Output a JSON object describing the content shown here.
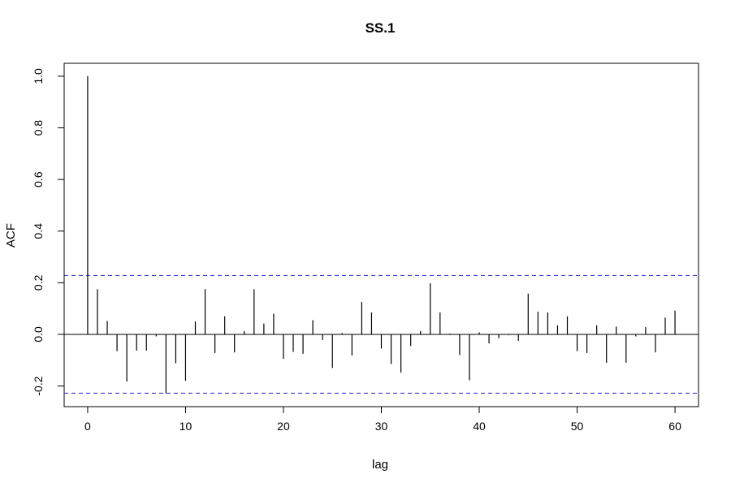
{
  "chart_data": {
    "type": "bar",
    "title": "SS.1",
    "xlabel": "lag",
    "ylabel": "ACF",
    "xlim": [
      -2.4,
      62.4
    ],
    "ylim": [
      -0.28,
      1.05
    ],
    "x_ticks": [
      0,
      10,
      20,
      30,
      40,
      50,
      60
    ],
    "y_ticks": [
      -0.2,
      0.0,
      0.2,
      0.4,
      0.6,
      0.8,
      1.0
    ],
    "y_tick_labels": [
      "-0.2",
      "0.0",
      "0.2",
      "0.4",
      "0.6",
      "0.8",
      "1.0"
    ],
    "confidence_bound": 0.228,
    "confidence_color": "#3b3bd6",
    "zero_line": true,
    "grid": false,
    "lags": [
      0,
      1,
      2,
      3,
      4,
      5,
      6,
      7,
      8,
      9,
      10,
      11,
      12,
      13,
      14,
      15,
      16,
      17,
      18,
      19,
      20,
      21,
      22,
      23,
      24,
      25,
      26,
      27,
      28,
      29,
      30,
      31,
      32,
      33,
      34,
      35,
      36,
      37,
      38,
      39,
      40,
      41,
      42,
      43,
      44,
      45,
      46,
      47,
      48,
      49,
      50,
      51,
      52,
      53,
      54,
      55,
      56,
      57,
      58,
      59,
      60
    ],
    "values": [
      1.0,
      0.175,
      0.052,
      -0.065,
      -0.183,
      -0.063,
      -0.063,
      -0.008,
      -0.228,
      -0.112,
      -0.18,
      0.05,
      0.175,
      -0.072,
      0.07,
      -0.07,
      0.013,
      0.175,
      0.042,
      0.08,
      -0.095,
      -0.068,
      -0.075,
      0.055,
      -0.022,
      -0.13,
      0.005,
      -0.082,
      0.125,
      0.085,
      -0.055,
      -0.115,
      -0.148,
      -0.045,
      0.013,
      0.198,
      0.085,
      0.003,
      -0.08,
      -0.178,
      0.008,
      -0.035,
      -0.015,
      -0.003,
      -0.025,
      0.158,
      0.088,
      0.085,
      0.035,
      0.07,
      -0.065,
      -0.072,
      0.035,
      -0.11,
      0.03,
      -0.11,
      -0.008,
      0.028,
      -0.07,
      0.065,
      0.092
    ]
  }
}
